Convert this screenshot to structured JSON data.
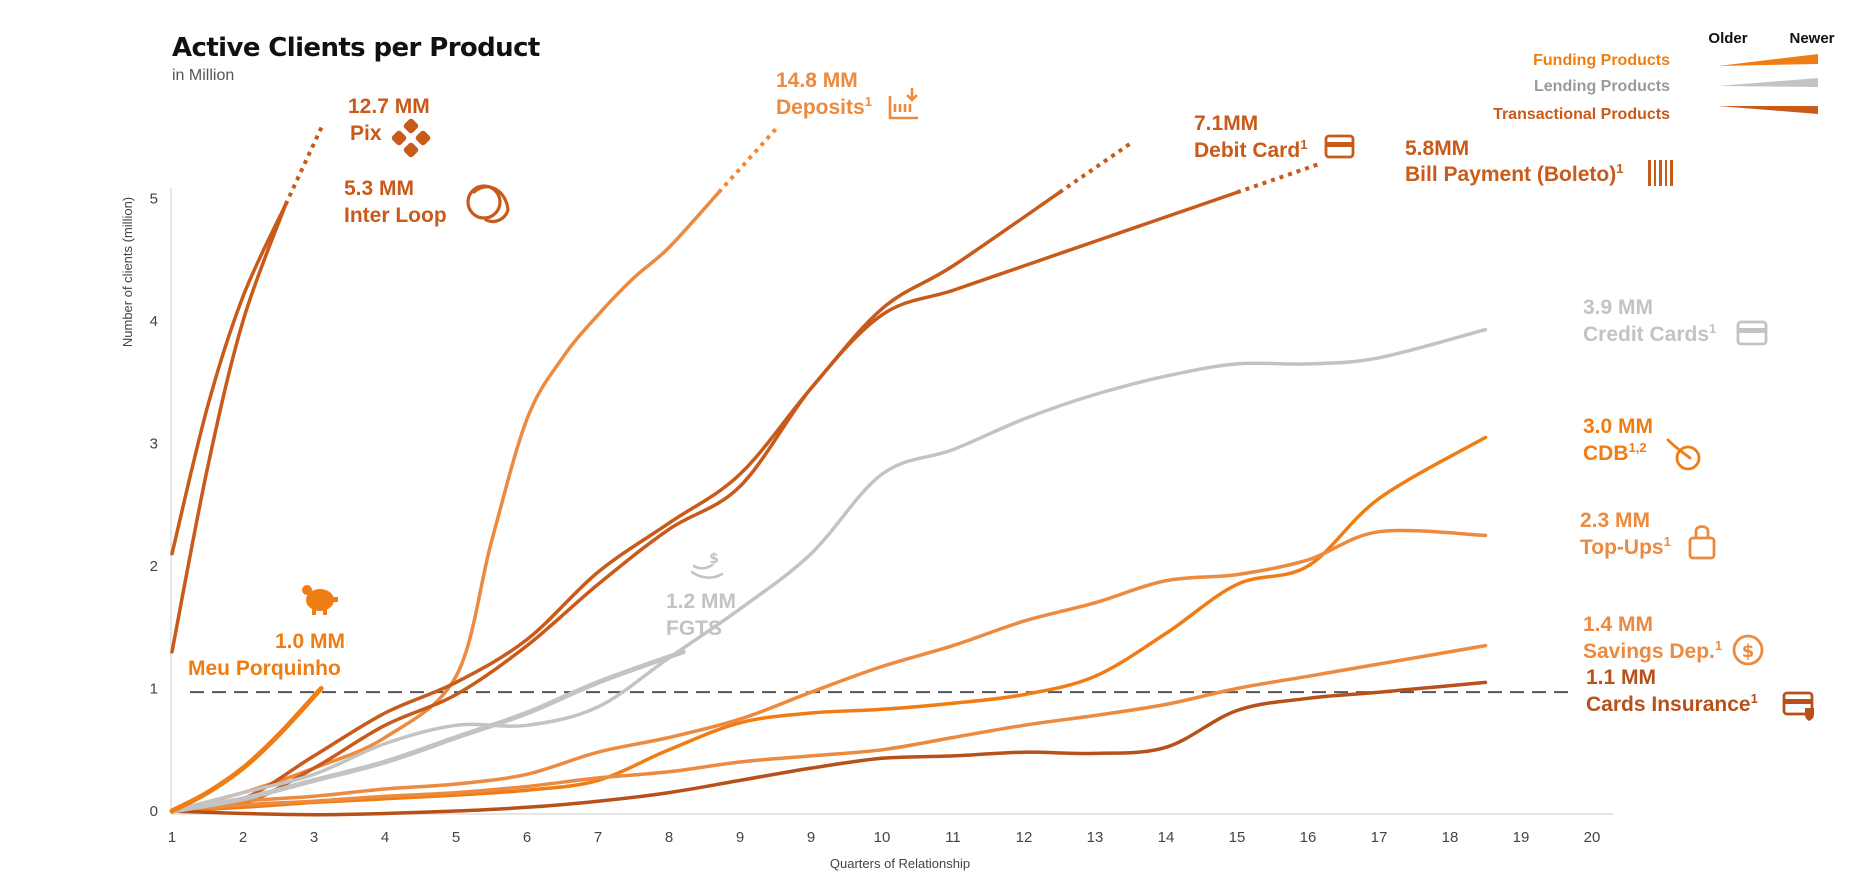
{
  "chart_data": {
    "type": "line",
    "title": "Active Clients per Product",
    "subtitle": "in Million",
    "xlabel": "Quarters of Relationship",
    "ylabel": "Number of clients (million)",
    "x_ticks": [
      "1",
      "2",
      "3",
      "4",
      "5",
      "6",
      "7",
      "8",
      "9",
      "9",
      "10",
      "11",
      "12",
      "13",
      "14",
      "15",
      "16",
      "17",
      "18",
      "19",
      "20"
    ],
    "y_ticks": [
      "0",
      "1",
      "2",
      "3",
      "4",
      "5"
    ],
    "ylim": [
      0,
      5
    ],
    "reference_line": {
      "y": 0.97,
      "style": "dashed"
    },
    "colors": {
      "funding": "#f07d14",
      "funding_alt": "#ec8a3f",
      "lending": "#c3c3c3",
      "transactional": "#c85a1a",
      "deep": "#b8501a"
    },
    "legend": {
      "older_label": "Older",
      "newer_label": "Newer",
      "items": [
        {
          "label": "Funding Products",
          "category": "funding"
        },
        {
          "label": "Lending Products",
          "category": "lending"
        },
        {
          "label": "Transactional Products",
          "category": "transactional"
        }
      ]
    },
    "series": [
      {
        "key": "pix",
        "name": "Pix",
        "value": "12.7 MM",
        "sup": "",
        "category": "transactional",
        "icon": "pix-icon",
        "x": [
          1,
          1.5,
          2,
          2.6
        ],
        "y": [
          2.1,
          3.3,
          4.2,
          4.95
        ],
        "continues_above": true
      },
      {
        "key": "inter_loop",
        "name": "Inter Loop",
        "value": "5.3 MM",
        "sup": "",
        "category": "transactional",
        "icon": "loop-icon",
        "x": [
          1,
          1.5,
          2,
          2.6
        ],
        "y": [
          1.3,
          2.8,
          4.0,
          4.95
        ],
        "continues_above": false
      },
      {
        "key": "deposits",
        "name": "Deposits",
        "value": "14.8 MM",
        "sup": "1",
        "category": "funding_alt",
        "icon": "deposit-icon",
        "x": [
          1,
          2,
          3,
          4,
          5,
          5.5,
          6,
          6.5,
          7,
          7.5,
          8,
          8.7
        ],
        "y": [
          0,
          0.15,
          0.35,
          0.6,
          1.1,
          2.2,
          3.2,
          3.7,
          4.05,
          4.35,
          4.6,
          5.05
        ],
        "continues_above": true
      },
      {
        "key": "debit_card",
        "name": "Debit Card",
        "value": "7.1MM",
        "sup": "1",
        "category": "transactional",
        "icon": "card-icon",
        "x": [
          1,
          2,
          3,
          4,
          5,
          6,
          7,
          8,
          9,
          10,
          11,
          12,
          13.5
        ],
        "y": [
          0,
          0.1,
          0.45,
          0.8,
          1.05,
          1.4,
          1.95,
          2.35,
          2.75,
          3.45,
          4.1,
          4.45,
          5.05
        ],
        "continues_above": true
      },
      {
        "key": "boleto",
        "name": "Bill Payment (Boleto)",
        "value": "5.8MM",
        "sup": "1",
        "category": "transactional",
        "icon": "barcode-icon",
        "x": [
          1,
          2,
          3,
          4,
          5,
          6,
          7,
          8,
          9,
          10,
          11,
          12,
          13,
          14,
          15,
          16
        ],
        "y": [
          0,
          0.06,
          0.35,
          0.7,
          0.95,
          1.35,
          1.85,
          2.3,
          2.65,
          3.45,
          4.05,
          4.25,
          4.45,
          4.65,
          4.85,
          5.05
        ],
        "continues_above": true
      },
      {
        "key": "credit_cards",
        "name": "Credit Cards",
        "value": "3.9 MM",
        "sup": "1",
        "category": "lending",
        "icon": "credit-card-icon",
        "x": [
          1,
          2,
          3,
          4,
          5,
          6,
          7,
          8,
          9,
          10,
          11,
          12,
          13,
          14,
          15,
          16,
          17,
          18,
          19.5
        ],
        "y": [
          0,
          0.15,
          0.3,
          0.55,
          0.7,
          0.7,
          0.85,
          1.25,
          1.65,
          2.1,
          2.75,
          2.95,
          3.2,
          3.4,
          3.55,
          3.65,
          3.65,
          3.7,
          3.93
        ],
        "continues_above": false
      },
      {
        "key": "cdb",
        "name": "CDB",
        "value": "3.0 MM",
        "sup": "1,2",
        "category": "funding",
        "icon": "cdb-icon",
        "x": [
          1,
          2,
          3,
          4,
          5,
          6,
          7,
          8,
          9,
          10,
          11,
          12,
          13,
          14,
          15,
          16,
          17,
          18,
          19.5
        ],
        "y": [
          0,
          0.03,
          0.07,
          0.1,
          0.13,
          0.17,
          0.25,
          0.5,
          0.72,
          0.8,
          0.83,
          0.88,
          0.95,
          1.1,
          1.45,
          1.85,
          2.0,
          2.55,
          3.05
        ],
        "continues_above": false
      },
      {
        "key": "top_ups",
        "name": "Top-Ups",
        "value": "2.3 MM",
        "sup": "1",
        "category": "funding_alt",
        "icon": "bag-icon",
        "x": [
          1,
          2,
          3,
          4,
          5,
          6,
          7,
          8,
          9,
          10,
          11,
          12,
          13,
          14,
          15,
          16,
          17,
          18,
          19.5
        ],
        "y": [
          0,
          0.08,
          0.12,
          0.18,
          0.22,
          0.3,
          0.48,
          0.6,
          0.75,
          0.97,
          1.18,
          1.35,
          1.55,
          1.7,
          1.88,
          1.93,
          2.05,
          2.28,
          2.25
        ],
        "continues_above": false
      },
      {
        "key": "savings",
        "name": "Savings Dep.",
        "value": "1.4 MM",
        "sup": "1",
        "category": "funding_alt",
        "icon": "dollar-coin-icon",
        "x": [
          1,
          2,
          3,
          4,
          5,
          6,
          7,
          8,
          9,
          10,
          11,
          12,
          13,
          14,
          15,
          16,
          17,
          18,
          19.5
        ],
        "y": [
          0,
          0.05,
          0.08,
          0.12,
          0.15,
          0.2,
          0.27,
          0.32,
          0.4,
          0.45,
          0.5,
          0.6,
          0.7,
          0.78,
          0.87,
          1.0,
          1.1,
          1.2,
          1.35
        ],
        "continues_above": false
      },
      {
        "key": "cards_insurance",
        "name": "Cards Insurance",
        "value": "1.1 MM",
        "sup": "1",
        "category": "deep",
        "icon": "card-shield-icon",
        "x": [
          1,
          2,
          3,
          4,
          5,
          6,
          7,
          8,
          9,
          10,
          11,
          12,
          13,
          14,
          15,
          16,
          17,
          18,
          19.5
        ],
        "y": [
          0,
          -0.02,
          -0.03,
          -0.02,
          0,
          0.03,
          0.08,
          0.15,
          0.25,
          0.35,
          0.43,
          0.45,
          0.48,
          0.47,
          0.52,
          0.82,
          0.92,
          0.97,
          1.05
        ],
        "continues_above": false
      },
      {
        "key": "fgts",
        "name": "FGTS",
        "value": "1.2 MM",
        "sup": "",
        "category": "lending",
        "icon": "fgts-icon",
        "x": [
          1,
          2,
          3,
          4,
          5,
          6,
          7,
          8.2
        ],
        "y": [
          0,
          0.1,
          0.25,
          0.4,
          0.6,
          0.8,
          1.05,
          1.3
        ],
        "continues_above": false
      },
      {
        "key": "porquinho",
        "name": "Meu Porquinho",
        "value": "1.0 MM",
        "sup": "",
        "category": "funding",
        "icon": "piggy-bank-icon",
        "x": [
          1,
          1.5,
          2,
          2.5,
          3.1
        ],
        "y": [
          0,
          0.15,
          0.35,
          0.62,
          1.0
        ],
        "continues_above": false
      }
    ]
  }
}
